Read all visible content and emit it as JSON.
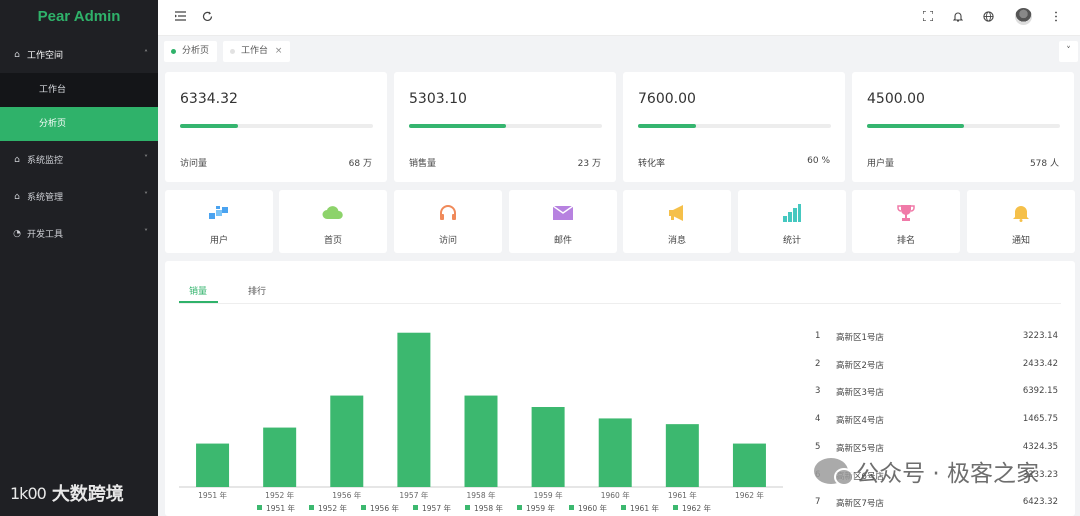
{
  "app": {
    "title": "Pear Admin"
  },
  "sidebar": {
    "groups": [
      {
        "label": "工作空间",
        "icon": "home-icon",
        "open": true
      },
      {
        "label": "系统监控",
        "icon": "home-icon"
      },
      {
        "label": "系统管理",
        "icon": "home-icon"
      },
      {
        "label": "开发工具",
        "icon": "gauge-icon"
      }
    ],
    "submenu": [
      {
        "label": "工作台"
      },
      {
        "label": "分析页",
        "active": true
      }
    ]
  },
  "tabs": [
    {
      "label": "分析页",
      "active": true
    },
    {
      "label": "工作台",
      "close": "×"
    }
  ],
  "stats": [
    {
      "value": "6334.32",
      "label": "访问量",
      "unit": "68 万",
      "progress": 0.3
    },
    {
      "value": "5303.10",
      "label": "销售量",
      "unit": "23 万",
      "progress": 0.5
    },
    {
      "value": "7600.00",
      "label": "转化率",
      "unit": "60 %",
      "progress": 0.3
    },
    {
      "value": "4500.00",
      "label": "用户量",
      "unit": "578 人",
      "progress": 0.5
    }
  ],
  "shortcuts": [
    {
      "label": "用户",
      "icon": "users-icon",
      "color": "#4aa3f0"
    },
    {
      "label": "首页",
      "icon": "cloud-icon",
      "color": "#8dd36b"
    },
    {
      "label": "访问",
      "icon": "headset-icon",
      "color": "#f08a5a"
    },
    {
      "label": "邮件",
      "icon": "mail-icon",
      "color": "#b782e0"
    },
    {
      "label": "消息",
      "icon": "megaphone-icon",
      "color": "#f5c04a"
    },
    {
      "label": "统计",
      "icon": "bar-chart-icon",
      "color": "#45c8c0"
    },
    {
      "label": "排名",
      "icon": "trophy-icon",
      "color": "#f07aa8"
    },
    {
      "label": "通知",
      "icon": "bell-icon",
      "color": "#f5c04a"
    }
  ],
  "panel": {
    "tabs": [
      {
        "label": "销量",
        "active": true
      },
      {
        "label": "排行"
      }
    ]
  },
  "chart_data": {
    "type": "bar",
    "categories": [
      "1951 年",
      "1952 年",
      "1956 年",
      "1957 年",
      "1958 年",
      "1959 年",
      "1960 年",
      "1961 年",
      "1962 年"
    ],
    "values": [
      38,
      52,
      80,
      135,
      80,
      70,
      60,
      55,
      38
    ],
    "ylim": [
      0,
      140
    ],
    "color": "#3cb86f",
    "legend": [
      "1951 年",
      "1952 年",
      "1956 年",
      "1957 年",
      "1958 年",
      "1959 年",
      "1960 年",
      "1961 年",
      "1962 年"
    ],
    "legend_position": "bottom"
  },
  "ranking": [
    {
      "no": "1",
      "name": "高新区1号店",
      "amount": "3223.14"
    },
    {
      "no": "2",
      "name": "高新区2号店",
      "amount": "2433.42"
    },
    {
      "no": "3",
      "name": "高新区3号店",
      "amount": "6392.15"
    },
    {
      "no": "4",
      "name": "高新区4号店",
      "amount": "1465.75"
    },
    {
      "no": "5",
      "name": "高新区5号店",
      "amount": "4324.35"
    },
    {
      "no": "6",
      "name": "高新区6号店",
      "amount": "3233.23"
    },
    {
      "no": "7",
      "name": "高新区7号店",
      "amount": "6423.32"
    }
  ],
  "watermarks": {
    "left": "大数跨境",
    "left_logo": "1k00",
    "right": "公众号 · 极客之家"
  }
}
